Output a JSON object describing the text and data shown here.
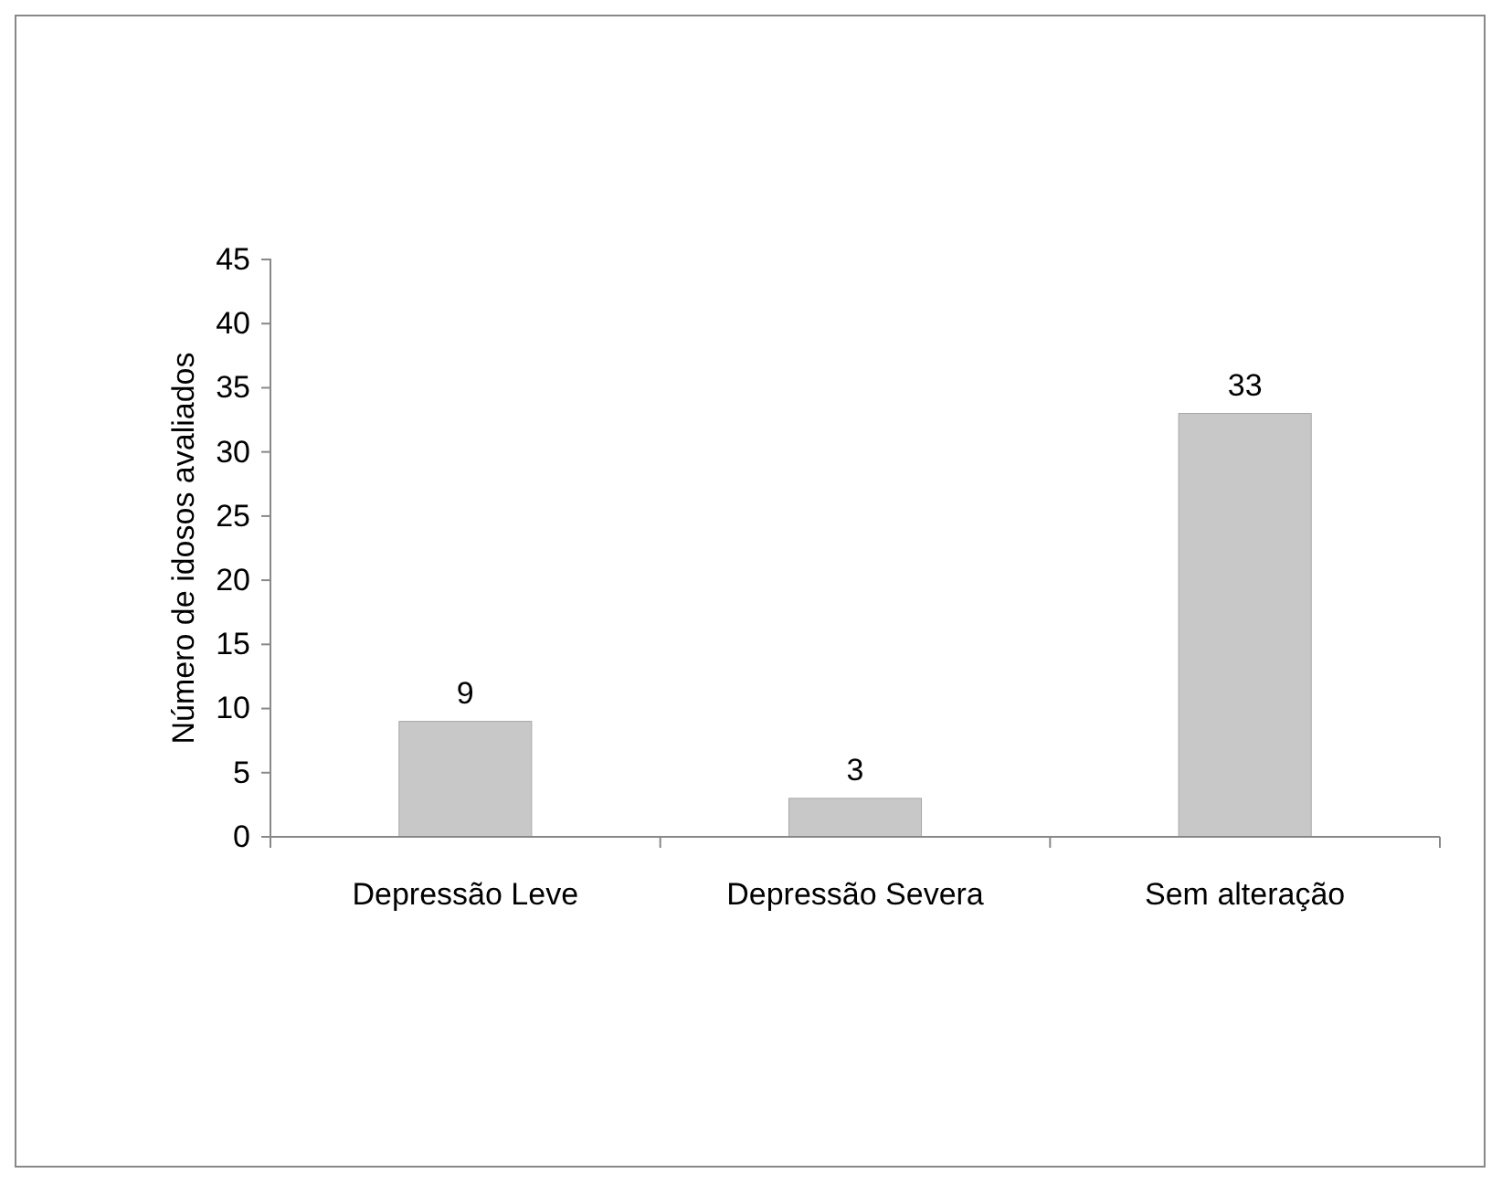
{
  "chart_data": {
    "type": "bar",
    "ylabel": "Número de idosos avaliados",
    "categories": [
      "Depressão Leve",
      "Depressão Severa",
      "Sem alteração"
    ],
    "values": [
      9,
      3,
      33
    ],
    "color": "#c8c8c8",
    "ylim": [
      0,
      45
    ],
    "yticks": [
      0,
      5,
      10,
      15,
      20,
      25,
      30,
      35,
      40,
      45
    ],
    "grid": false,
    "data_labels": true
  }
}
